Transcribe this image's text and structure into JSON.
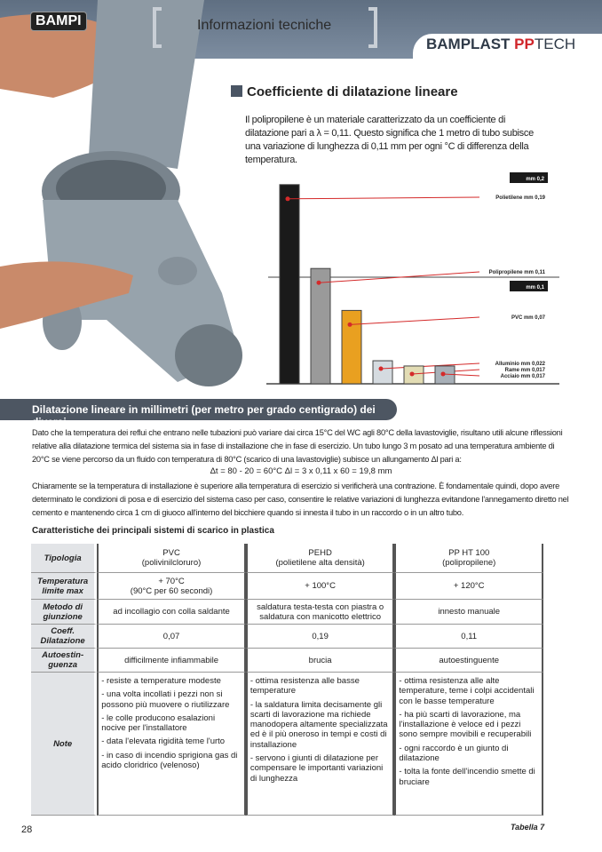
{
  "header": {
    "logo": "BAMPI",
    "section": "Informazioni tecniche",
    "brand_main": "BAMPLAST ",
    "brand_pp": "PP",
    "brand_tech": "TECH"
  },
  "intro": {
    "title": "Coefficiente di dilatazione lineare",
    "text": "Il polipropilene è un materiale caratterizzato da un coefficiente di dilatazione pari a λ = 0,11.  Questo significa che 1 metro di tubo subisce una variazione di lunghezza di 0,11 mm per ogni °C di differenza della temperatura."
  },
  "chart_data": {
    "type": "bar",
    "title": "",
    "ylim": [
      0,
      0.2
    ],
    "reference_labels": [
      "mm 0,2",
      "mm 0,1"
    ],
    "categories": [
      "Polietilene",
      "Polipropilene",
      "PVC",
      "Alluminio",
      "Rame",
      "Acciaio"
    ],
    "values": [
      0.19,
      0.11,
      0.07,
      0.022,
      0.017,
      0.017
    ],
    "labels": [
      "Polietilene  mm 0,19",
      "Polipropilene  mm 0,11",
      "PVC  mm 0,07",
      "Alluminio  mm 0,022",
      "Rame  mm 0,017",
      "Acciaio  mm 0,017"
    ],
    "colors": [
      "#1a1a1a",
      "#9a9a9a",
      "#e9a020",
      "#d5dbe0",
      "#e2dcb4",
      "#a8b0b8"
    ],
    "marker_color": "#d42a2a"
  },
  "band_title": "Dilatazione lineare in millimetri (per metro per grado centigrado) dei diversi",
  "para1": "Dato che la temperatura dei reflui che entrano nelle tubazioni può variare dai circa 15°C del WC agli 80°C della lavastoviglie, risultano utili alcune riflessioni relative alla dilatazione termica del sistema sia in fase di installazione che in fase di esercizio. Un tubo lungo 3 m posato ad una temperatura ambiente di 20°C se viene percorso da un fluido con temperatura di 80°C (scarico di una lavastoviglie) subisce un allungamento Δl pari a:",
  "formula": "Δt = 80 - 20 = 60°C     Δl = 3 x 0,11 x 60 = 19,8 mm",
  "para2": "Chiaramente se la temperatura di installazione è superiore alla temperatura di esercizio si verificherà una contrazione. È fondamentale quindi, dopo avere determinato le condizioni di posa e di esercizio del sistema caso per caso, consentire le relative variazioni di lunghezza evitandone l'annegamento diretto nel cemento e mantenendo circa 1 cm di giuoco all'interno del bicchiere quando si innesta il tubo in un raccordo o in un altro tubo.",
  "table": {
    "title": "Caratteristiche dei principali sistemi di scarico in plastica",
    "rows": [
      {
        "label": "Tipologia",
        "cells": [
          "PVC\n(polivinilcloruro)",
          "PEHD\n(polietilene alta densità)",
          "PP HT 100\n(polipropilene)"
        ]
      },
      {
        "label": "Temperatura limite max",
        "cells": [
          "+ 70°C\n(90°C per 60 secondi)",
          "+ 100°C",
          "+ 120°C"
        ]
      },
      {
        "label": "Metodo di giunzione",
        "cells": [
          "ad incollagio con colla saldante",
          "saldatura testa-testa con piastra o saldatura con manicotto elettrico",
          "innesto manuale"
        ]
      },
      {
        "label": "Coeff. Dilatazione",
        "cells": [
          "0,07",
          "0,19",
          "0,11"
        ]
      },
      {
        "label": "Autoestin-guenza",
        "cells": [
          "difficilmente infiammabile",
          "brucia",
          "autoestinguente"
        ]
      }
    ],
    "note_label": "Note",
    "notes": [
      [
        "- resiste a temperature modeste",
        "- una volta incollati i pezzi non si possono più muovere o riutilizzare",
        "- le colle producono esalazioni nocive per l'installatore",
        "- data l'elevata rigidità teme l'urto",
        "- in caso di incendio sprigiona gas di acido cloridrico (velenoso)"
      ],
      [
        "- ottima resistenza alle basse temperature",
        "- la saldatura limita decisamente gli scarti di lavorazione ma richiede manodopera altamente specializzata ed è il più oneroso in tempi e costi di installazione",
        "- servono i giunti di dilatazione per compensare le importanti variazioni di lunghezza"
      ],
      [
        "- ottima resistenza alle alte temperature, teme i colpi accidentali con le basse temperature",
        "- ha più scarti di lavorazione, ma l'installazione è veloce ed i pezzi sono sempre movibili e recuperabili",
        "- ogni raccordo è un giunto di dilatazione",
        "- tolta la fonte dell'incendio smette di bruciare"
      ]
    ],
    "caption": "Tabella 7"
  },
  "page_number": "28"
}
